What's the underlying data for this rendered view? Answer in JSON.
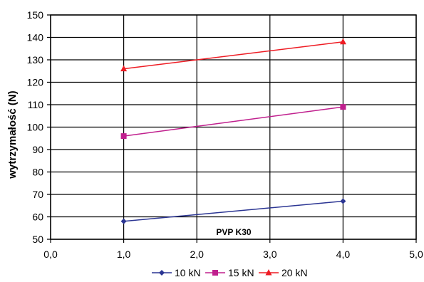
{
  "chart_data": {
    "type": "line",
    "title": "",
    "xlabel": "",
    "ylabel": "wytrzymałość (N)",
    "annotation": "PVP K30",
    "xlim": [
      0,
      5
    ],
    "ylim": [
      50,
      150
    ],
    "x_ticks": [
      "0,0",
      "1,0",
      "2,0",
      "3,0",
      "4,0",
      "5,0"
    ],
    "y_ticks": [
      "50",
      "60",
      "70",
      "80",
      "90",
      "100",
      "110",
      "120",
      "130",
      "140",
      "150"
    ],
    "grid": true,
    "legend_position": "bottom",
    "series": [
      {
        "name": "10 kN",
        "color": "#2b3593",
        "marker": "diamond",
        "x": [
          1.0,
          4.0
        ],
        "y": [
          58,
          67
        ]
      },
      {
        "name": "15 kN",
        "color": "#c0208e",
        "marker": "square",
        "x": [
          1.0,
          4.0
        ],
        "y": [
          96,
          109
        ]
      },
      {
        "name": "20 kN",
        "color": "#ee1c24",
        "marker": "triangle",
        "x": [
          1.0,
          4.0
        ],
        "y": [
          126,
          138
        ]
      }
    ]
  }
}
